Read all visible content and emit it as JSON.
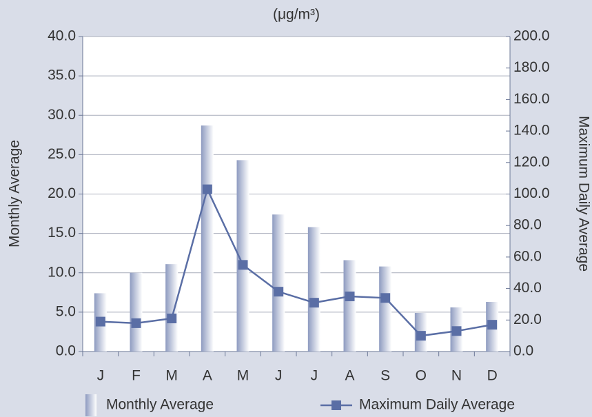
{
  "chart_data": {
    "type": "bar",
    "title": "(μg/m³)",
    "y_label": "Monthly Average",
    "y2_label": "Maximum Daily Average",
    "categories": [
      "J",
      "F",
      "M",
      "A",
      "M",
      "J",
      "J",
      "A",
      "S",
      "O",
      "N",
      "D"
    ],
    "series": [
      {
        "name": "Monthly Average",
        "type": "bar",
        "color": "#8e9bc0",
        "values": [
          7.4,
          10.0,
          11.1,
          28.7,
          24.3,
          17.4,
          15.8,
          11.6,
          10.8,
          4.9,
          5.6,
          6.3
        ]
      },
      {
        "name": "Maximum Daily Average",
        "type": "line",
        "axis": "y2",
        "color": "#5a6ea5",
        "values": [
          19,
          18,
          21,
          103,
          55,
          38,
          31,
          35,
          34,
          10,
          13,
          17
        ]
      }
    ],
    "ylim": [
      0,
      40
    ],
    "yticks": [
      {
        "value": 0,
        "label": "0.0"
      },
      {
        "value": 5,
        "label": "5.0"
      },
      {
        "value": 10,
        "label": "10.0"
      },
      {
        "value": 15,
        "label": "15.0"
      },
      {
        "value": 20,
        "label": "20.0"
      },
      {
        "value": 25,
        "label": "25.0"
      },
      {
        "value": 30,
        "label": "30.0"
      },
      {
        "value": 35,
        "label": "35.0"
      },
      {
        "value": 40,
        "label": "40.0"
      }
    ],
    "y2lim": [
      0,
      200
    ],
    "y2ticks": [
      {
        "value": 0,
        "label": "0.0"
      },
      {
        "value": 20,
        "label": "20.0"
      },
      {
        "value": 40,
        "label": "40.0"
      },
      {
        "value": 60,
        "label": "60.0"
      },
      {
        "value": 80,
        "label": "80.0"
      },
      {
        "value": 100,
        "label": "100.0"
      },
      {
        "value": 120,
        "label": "120.0"
      },
      {
        "value": 140,
        "label": "140.0"
      },
      {
        "value": 160,
        "label": "160.0"
      },
      {
        "value": 180,
        "label": "180.0"
      },
      {
        "value": 200,
        "label": "200.0"
      }
    ],
    "grid": true,
    "legend": "bottom"
  }
}
